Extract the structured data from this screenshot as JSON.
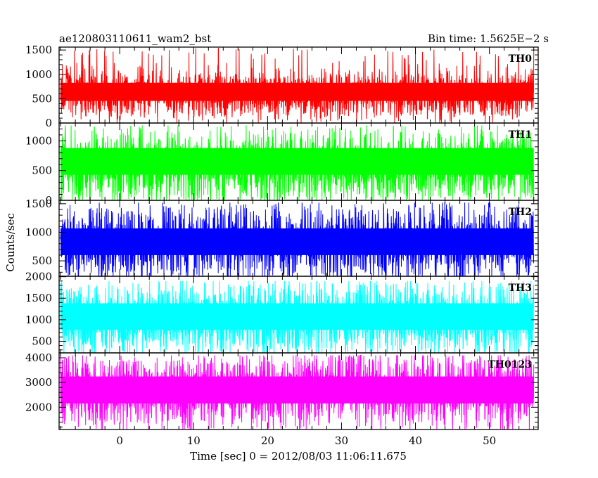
{
  "chart_data": {
    "type": "line",
    "title": "ae120803110611_wam2_bst",
    "subtitle": "Bin time: 1.5625E−2 s",
    "xlabel": "Time [sec] 0 = 2012/08/03 11:06:11.675",
    "ylabel": "Counts/sec",
    "xlim": [
      -8.2,
      56.6
    ],
    "x_ticks": [
      0,
      10,
      20,
      30,
      40,
      50
    ],
    "grid": false,
    "legend": "none",
    "panels": [
      {
        "name": "TH0",
        "color": "#ff0000",
        "ylim": [
          0,
          1560
        ],
        "y_ticks": [
          0,
          500,
          1000,
          1500
        ],
        "data_x_range": [
          -8.0,
          56.0
        ],
        "mean": 600,
        "typical_range": [
          230,
          1050
        ],
        "max_peak": 1550
      },
      {
        "name": "TH1",
        "color": "#00ff00",
        "ylim": [
          0,
          1300
        ],
        "y_ticks": [
          0,
          500,
          1000
        ],
        "data_x_range": [
          -8.0,
          56.0
        ],
        "mean": 560,
        "typical_range": [
          160,
          1150
        ],
        "max_peak": 1260
      },
      {
        "name": "TH2",
        "color": "#0000ff",
        "ylim": [
          230,
          1560
        ],
        "y_ticks": [
          500,
          1000,
          1500
        ],
        "data_x_range": [
          -8.0,
          56.0
        ],
        "mean": 800,
        "typical_range": [
          320,
          1350
        ],
        "max_peak": 1520
      },
      {
        "name": "TH3",
        "color": "#00ffff",
        "ylim": [
          230,
          2010
        ],
        "y_ticks": [
          500,
          1000,
          1500,
          2000
        ],
        "data_x_range": [
          -8.0,
          56.0
        ],
        "mean": 1000,
        "typical_range": [
          400,
          1750
        ],
        "max_peak": 1900
      },
      {
        "name": "TH0123",
        "color": "#ff00ff",
        "ylim": [
          1100,
          4200
        ],
        "y_ticks": [
          2000,
          3000,
          4000
        ],
        "data_x_range": [
          -8.0,
          56.0
        ],
        "mean": 2700,
        "typical_range": [
          1500,
          3900
        ],
        "max_peak": 4100
      }
    ]
  }
}
